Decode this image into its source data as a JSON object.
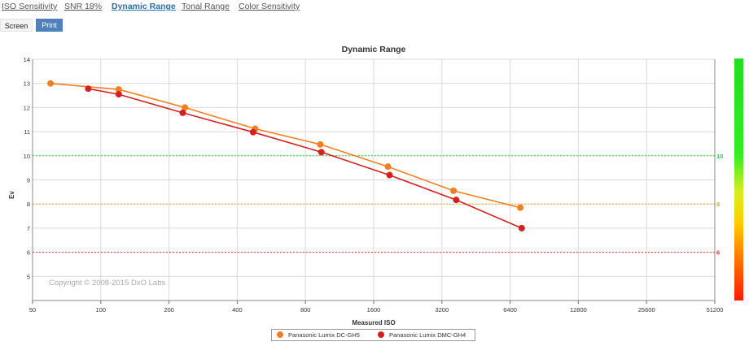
{
  "tabs": [
    {
      "label": "ISO Sensitivity",
      "active": false
    },
    {
      "label": "SNR 18%",
      "active": false
    },
    {
      "label": "Dynamic Range",
      "active": true
    },
    {
      "label": "Tonal Range",
      "active": false
    },
    {
      "label": "Color Sensitivity",
      "active": false
    }
  ],
  "mode": {
    "screen_label": "Screen",
    "print_label": "Print",
    "selected": "Print"
  },
  "chart_data": {
    "type": "line",
    "title": "Dynamic Range",
    "xlabel": "Measured ISO",
    "ylabel": "Ev",
    "x_scale": "log2",
    "xlim": [
      50,
      51200
    ],
    "ylim": [
      4,
      14
    ],
    "x_ticks": [
      "50",
      "100",
      "200",
      "400",
      "800",
      "1600",
      "3200",
      "6400",
      "12800",
      "25600",
      "51200"
    ],
    "y_ticks": [
      "5",
      "6",
      "7",
      "8",
      "9",
      "10",
      "11",
      "12",
      "13",
      "14"
    ],
    "grid": true,
    "watermark": "Copyright © 2008-2015 DxO Labs",
    "reference_lines": [
      {
        "y": 10,
        "label": "10",
        "color": "#2ecc40"
      },
      {
        "y": 8,
        "label": "8",
        "color": "#e0b040"
      },
      {
        "y": 6,
        "label": "6",
        "color": "#e03030"
      }
    ],
    "color_scale": "green-yellow-red gradient",
    "legend_position": "bottom",
    "series": [
      {
        "name": "Panasonic Lumix DC-GH5",
        "color": "#f07f1f",
        "points": [
          [
            60,
            13.0
          ],
          [
            120,
            12.75
          ],
          [
            235,
            12.0
          ],
          [
            480,
            11.12
          ],
          [
            930,
            10.47
          ],
          [
            1850,
            9.55
          ],
          [
            3600,
            8.55
          ],
          [
            7100,
            7.85
          ]
        ]
      },
      {
        "name": "Panasonic Lumix DMC-GH4",
        "color": "#d42020",
        "points": [
          [
            88,
            12.78
          ],
          [
            120,
            12.55
          ],
          [
            230,
            11.78
          ],
          [
            470,
            10.98
          ],
          [
            940,
            10.15
          ],
          [
            1880,
            9.2
          ],
          [
            3700,
            8.17
          ],
          [
            7200,
            7.0
          ]
        ]
      }
    ]
  }
}
